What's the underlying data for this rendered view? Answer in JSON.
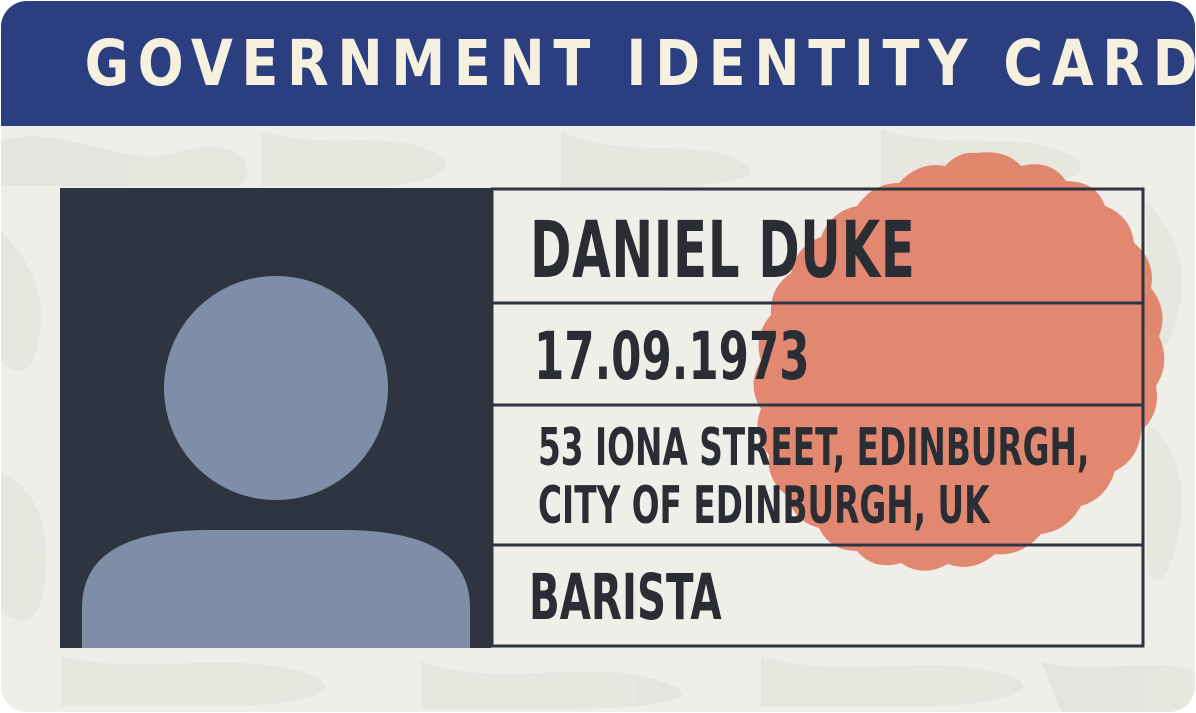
{
  "card": {
    "title": "GOVERNMENT IDENTITY CARD",
    "name": "DANIEL DUKE",
    "date_of_birth": "17.09.1973",
    "address_line1": "53 IONA STREET, EDINBURGH,",
    "address_line2": "CITY OF EDINBURGH, UK",
    "occupation": "BARISTA"
  },
  "icons": {
    "photo": "person-silhouette-icon",
    "seal": "wavy-seal-stamp"
  },
  "colors": {
    "header": "#2b3f80",
    "header_text": "#f6f1df",
    "card_background": "#efeee9",
    "photo_background": "#2e3440",
    "silhouette": "#7f8da6",
    "seal": "#e07a5f",
    "text": "#2a2d33"
  }
}
